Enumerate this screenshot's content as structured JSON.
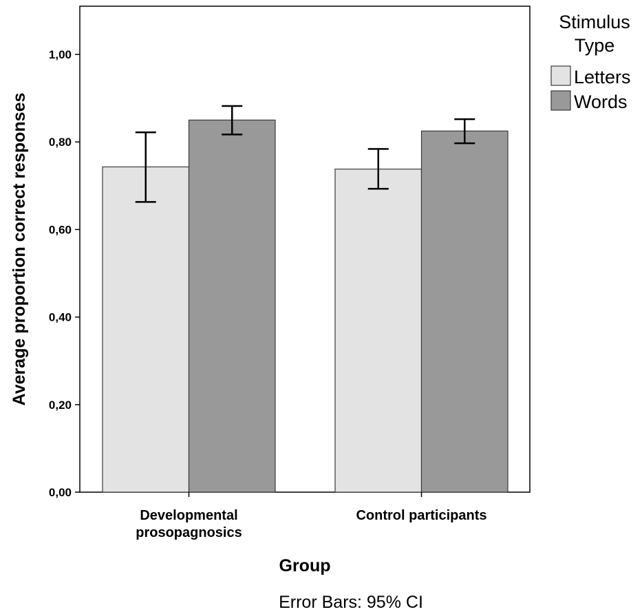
{
  "chart_data": {
    "type": "bar",
    "categories": [
      [
        "Developmental",
        "prosopagnosics"
      ],
      [
        "Control participants"
      ]
    ],
    "series": [
      {
        "name": "Letters",
        "color": "#e3e3e3",
        "values": [
          0.743,
          0.738
        ],
        "ci_low": [
          0.663,
          0.693
        ],
        "ci_high": [
          0.822,
          0.784
        ]
      },
      {
        "name": "Words",
        "color": "#999999",
        "values": [
          0.85,
          0.825
        ],
        "ci_low": [
          0.817,
          0.797
        ],
        "ci_high": [
          0.882,
          0.852
        ]
      }
    ],
    "xlabel": "Group",
    "ylabel": "Average proportion correct responses",
    "ylim": [
      0,
      1.1
    ],
    "yticks": [
      0,
      0.2,
      0.4,
      0.6,
      0.8,
      1.0
    ],
    "ytick_labels": [
      "0,00",
      "0,20",
      "0,40",
      "0,60",
      "0,80",
      "1,00"
    ],
    "legend_title": [
      "Stimulus",
      "Type"
    ],
    "legend_position": "right",
    "grid": false,
    "footnote": "Error Bars: 95% CI"
  }
}
